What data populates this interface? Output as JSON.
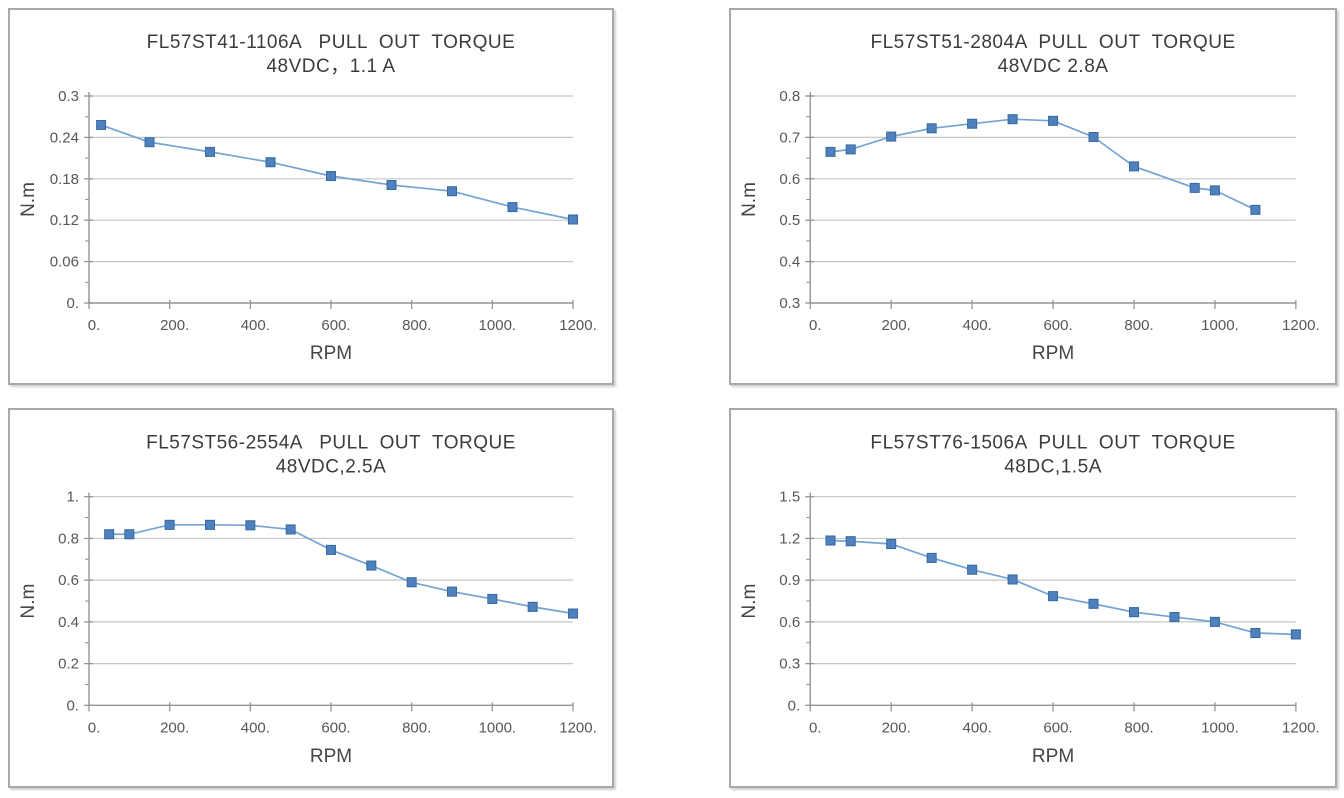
{
  "style": {
    "line_color": "#74a3d4",
    "marker_color": "#4e81bd",
    "marker_border": "#36699e",
    "grid_color": "#c6c6c6",
    "axis_color": "#949494",
    "panel_border": "#a9a9a9",
    "title_color": "#3c3c3c",
    "tick_color": "#575757"
  },
  "chart_data": [
    {
      "type": "line",
      "title": "FL57ST41-1106A   PULL  OUT  TORQUE",
      "subtitle": "48VDC，1.1 A",
      "xlabel": "RPM",
      "ylabel": "N.m",
      "grid": true,
      "legend_position": "none",
      "xlim": [
        0,
        1200
      ],
      "ylim": [
        0,
        0.3
      ],
      "xticks": {
        "values": [
          0,
          200,
          400,
          600,
          800,
          1000,
          1200
        ],
        "labels": [
          "0.",
          "200.",
          "400.",
          "600.",
          "800.",
          "1000.",
          "1200."
        ]
      },
      "yticks": {
        "values": [
          0,
          0.06,
          0.12,
          0.18,
          0.24,
          0.3
        ],
        "labels": [
          "0.",
          "0.06",
          "0.12",
          "0.18",
          "0.24",
          "0.3"
        ]
      },
      "x": [
        30,
        150,
        300,
        450,
        600,
        750,
        900,
        1050,
        1200
      ],
      "y": [
        0.258,
        0.233,
        0.219,
        0.204,
        0.184,
        0.171,
        0.162,
        0.139,
        0.121
      ]
    },
    {
      "type": "line",
      "title": "FL57ST51-2804A  PULL  OUT  TORQUE",
      "subtitle": "48VDC 2.8A",
      "xlabel": "RPM",
      "ylabel": "N.m",
      "grid": true,
      "legend_position": "none",
      "xlim": [
        0,
        1200
      ],
      "ylim": [
        0.3,
        0.8
      ],
      "xticks": {
        "values": [
          0,
          200,
          400,
          600,
          800,
          1000,
          1200
        ],
        "labels": [
          "0.",
          "200.",
          "400.",
          "600.",
          "800.",
          "1000.",
          "1200."
        ]
      },
      "yticks": {
        "values": [
          0.3,
          0.4,
          0.5,
          0.6,
          0.7,
          0.8
        ],
        "labels": [
          "0.3",
          "0.4",
          "0.5",
          "0.6",
          "0.7",
          "0.8"
        ]
      },
      "x": [
        50,
        100,
        200,
        300,
        400,
        500,
        600,
        700,
        800,
        950,
        1000,
        1100
      ],
      "y": [
        0.665,
        0.671,
        0.702,
        0.722,
        0.733,
        0.744,
        0.74,
        0.701,
        0.63,
        0.578,
        0.572,
        0.525
      ]
    },
    {
      "type": "line",
      "title": "FL57ST56-2554A   PULL  OUT  TORQUE",
      "subtitle": "48VDC,2.5A",
      "xlabel": "RPM",
      "ylabel": "N.m",
      "grid": true,
      "legend_position": "none",
      "xlim": [
        0,
        1200
      ],
      "ylim": [
        0,
        1.0
      ],
      "xticks": {
        "values": [
          0,
          200,
          400,
          600,
          800,
          1000,
          1200
        ],
        "labels": [
          "0.",
          "200.",
          "400.",
          "600.",
          "800.",
          "1000.",
          "1200."
        ]
      },
      "yticks": {
        "values": [
          0,
          0.2,
          0.4,
          0.6,
          0.8,
          1.0
        ],
        "labels": [
          "0.",
          "0.2",
          "0.4",
          "0.6",
          "0.8",
          "1."
        ]
      },
      "x": [
        50,
        100,
        200,
        300,
        400,
        500,
        600,
        700,
        800,
        900,
        1000,
        1100,
        1200
      ],
      "y": [
        0.82,
        0.82,
        0.865,
        0.865,
        0.863,
        0.843,
        0.745,
        0.67,
        0.59,
        0.545,
        0.51,
        0.472,
        0.44
      ]
    },
    {
      "type": "line",
      "title": "FL57ST76-1506A  PULL  OUT  TORQUE",
      "subtitle": "48DC,1.5A",
      "xlabel": "RPM",
      "ylabel": "N.m",
      "grid": true,
      "legend_position": "none",
      "xlim": [
        0,
        1200
      ],
      "ylim": [
        0,
        1.5
      ],
      "xticks": {
        "values": [
          0,
          200,
          400,
          600,
          800,
          1000,
          1200
        ],
        "labels": [
          "0.",
          "200.",
          "400.",
          "600.",
          "800.",
          "1000.",
          "1200."
        ]
      },
      "yticks": {
        "values": [
          0,
          0.3,
          0.6,
          0.9,
          1.2,
          1.5
        ],
        "labels": [
          "0.",
          "0.3",
          "0.6",
          "0.9",
          "1.2",
          "1.5"
        ]
      },
      "x": [
        50,
        100,
        200,
        300,
        400,
        500,
        600,
        700,
        800,
        900,
        1000,
        1100,
        1200
      ],
      "y": [
        1.185,
        1.18,
        1.16,
        1.06,
        0.975,
        0.905,
        0.785,
        0.73,
        0.67,
        0.635,
        0.6,
        0.52,
        0.51
      ]
    }
  ]
}
